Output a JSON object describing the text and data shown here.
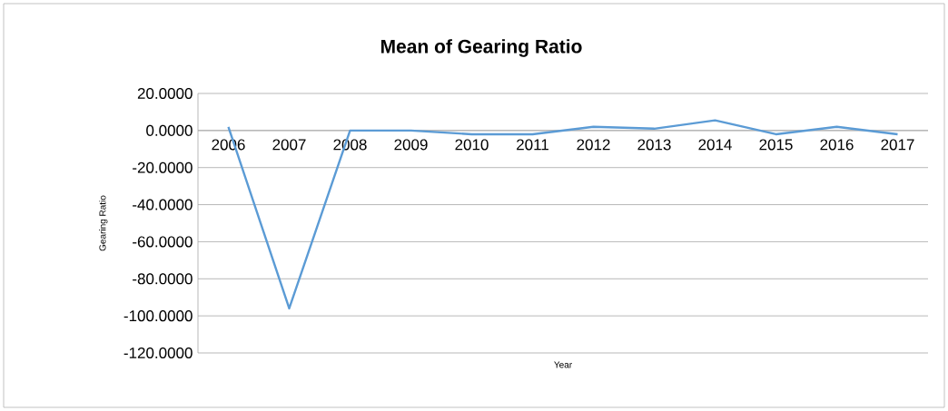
{
  "chart_data": {
    "type": "line",
    "title": "Mean of Gearing Ratio",
    "xlabel": "Year",
    "ylabel": "Gearing Ratio",
    "categories": [
      "2006",
      "2007",
      "2008",
      "2009",
      "2010",
      "2011",
      "2012",
      "2013",
      "2014",
      "2015",
      "2016",
      "2017"
    ],
    "series": [
      {
        "color": "#5b9bd5",
        "values": [
          2,
          -96,
          0,
          0,
          -2,
          -2,
          2,
          1,
          5.5,
          -2,
          2,
          -2
        ]
      }
    ],
    "ylim": [
      -120,
      20
    ],
    "yticks": [
      {
        "value": 20,
        "label": "20.0000"
      },
      {
        "value": 0,
        "label": "0.0000"
      },
      {
        "value": -20,
        "label": "-20.0000"
      },
      {
        "value": -40,
        "label": "-40.0000"
      },
      {
        "value": -60,
        "label": "-60.0000"
      },
      {
        "value": -80,
        "label": "-80.0000"
      },
      {
        "value": -100,
        "label": "-100.0000"
      },
      {
        "value": -120,
        "label": "-120.0000"
      }
    ],
    "grid": "y",
    "marker": "none",
    "line_style": "solid"
  }
}
